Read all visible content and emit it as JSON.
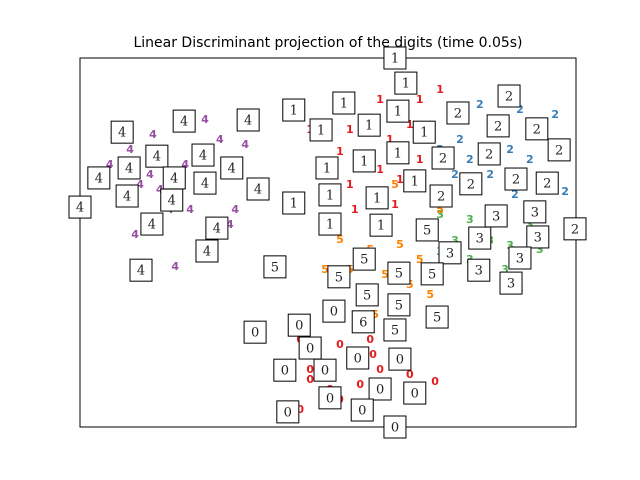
{
  "chart_data": {
    "type": "scatter",
    "title": "Linear Discriminant projection of the digits (time 0.05s)",
    "xlim": [
      0,
      100
    ],
    "ylim": [
      0,
      100
    ],
    "series": [
      {
        "name": "0",
        "color": "#e41a1c",
        "x": [
          50.4,
          44.4,
          52.4,
          58.5,
          62.9,
          46.4,
          54.4,
          60.5,
          66.5,
          50.4,
          56.5,
          44.4,
          52.4,
          46.4,
          71.6,
          59.1
        ],
        "values": [
          31.7,
          23.6,
          22.2,
          23.6,
          26.3,
          15.4,
          16.8,
          15.4,
          14.1,
          10.0,
          11.4,
          4.6,
          7.3,
          12.7,
          12.2,
          19.5
        ]
      },
      {
        "name": "1",
        "color": "#e41a1c",
        "x": [
          52.4,
          60.5,
          68.5,
          54.4,
          62.5,
          66.5,
          56.5,
          60.5,
          64.5,
          54.4,
          48.4,
          50.4,
          58.5,
          55.4,
          63.5,
          72.6,
          52.4,
          46.4,
          68.5,
          61.3
        ],
        "values": [
          88.6,
          88.6,
          88.6,
          80.5,
          77.8,
          81.8,
          72.4,
          69.6,
          66.9,
          65.6,
          68.3,
          61.5,
          62.9,
          58.8,
          60.2,
          91.3,
          74.5,
          80.5,
          72.4,
          53.4
        ]
      },
      {
        "name": "2",
        "color": "#377eb8",
        "x": [
          80.6,
          88.7,
          95.8,
          84.7,
          93.5,
          76.6,
          86.7,
          78.6,
          90.7,
          82.7,
          94.8,
          72.6,
          87.7,
          97.8,
          75.6
        ],
        "values": [
          87.3,
          85.9,
          84.6,
          81.0,
          79.1,
          77.8,
          75.1,
          72.4,
          72.4,
          68.3,
          66.9,
          75.1,
          62.9,
          63.7,
          68.3
        ]
      },
      {
        "name": "3",
        "color": "#4daf4a",
        "x": [
          72.6,
          78.6,
          84.7,
          90.7,
          75.6,
          82.7,
          86.7,
          78.6,
          85.7,
          92.7,
          72.6,
          88.7,
          80.6
        ],
        "values": [
          57.5,
          56.1,
          57.5,
          54.7,
          50.4,
          50.4,
          49.1,
          45.3,
          42.5,
          48.0,
          47.4,
          37.1,
          41.2
        ]
      },
      {
        "name": "4",
        "color": "#984ea3",
        "x": [
          14.7,
          10.1,
          6.0,
          14.1,
          12.1,
          16.1,
          8.1,
          21.2,
          26.2,
          30.2,
          18.1,
          11.1,
          24.2,
          22.2,
          15.1,
          28.2,
          33.3,
          25.2,
          19.2,
          31.3
        ],
        "values": [
          79.1,
          75.1,
          71.0,
          68.3,
          65.6,
          64.2,
          61.5,
          71.0,
          65.6,
          54.7,
          58.8,
          52.0,
          48.0,
          58.8,
          72.4,
          77.8,
          76.4,
          83.2,
          43.4,
          58.8
        ]
      },
      {
        "name": "5",
        "color": "#ff7f00",
        "x": [
          52.4,
          58.5,
          64.5,
          68.5,
          54.4,
          61.5,
          66.5,
          56.5,
          63.5,
          70.6,
          49.4,
          59.5,
          72.6,
          63.5
        ],
        "values": [
          50.7,
          48.0,
          49.3,
          45.3,
          42.5,
          41.2,
          38.5,
          37.1,
          34.4,
          35.8,
          42.5,
          30.4,
          58.8,
          65.6
        ]
      }
    ],
    "thumbnails": [
      {
        "label": "4",
        "x": 8.5,
        "y": 79.9
      },
      {
        "label": "4",
        "x": 21.0,
        "y": 82.9
      },
      {
        "label": "4",
        "x": 33.9,
        "y": 83.2
      },
      {
        "label": "4",
        "x": 15.5,
        "y": 73.4
      },
      {
        "label": "4",
        "x": 24.8,
        "y": 73.7
      },
      {
        "label": "4",
        "x": 9.9,
        "y": 70.2
      },
      {
        "label": "4",
        "x": 30.6,
        "y": 70.2
      },
      {
        "label": "4",
        "x": 3.8,
        "y": 67.5
      },
      {
        "label": "4",
        "x": 19.0,
        "y": 67.5
      },
      {
        "label": "4",
        "x": 25.2,
        "y": 66.1
      },
      {
        "label": "4",
        "x": 35.9,
        "y": 64.5
      },
      {
        "label": "4",
        "x": 9.5,
        "y": 62.6
      },
      {
        "label": "4",
        "x": 18.5,
        "y": 61.5
      },
      {
        "label": "4",
        "x": 0,
        "y": 59.6
      },
      {
        "label": "4",
        "x": 14.5,
        "y": 55.0
      },
      {
        "label": "4",
        "x": 27.6,
        "y": 53.9
      },
      {
        "label": "4",
        "x": 25.6,
        "y": 47.7
      },
      {
        "label": "4",
        "x": 12.3,
        "y": 42.5
      },
      {
        "label": "1",
        "x": 63.5,
        "y": 100
      },
      {
        "label": "1",
        "x": 65.7,
        "y": 93.2
      },
      {
        "label": "1",
        "x": 43.1,
        "y": 85.9
      },
      {
        "label": "1",
        "x": 53.2,
        "y": 87.8
      },
      {
        "label": "1",
        "x": 64.1,
        "y": 85.6
      },
      {
        "label": "1",
        "x": 58.3,
        "y": 81.8
      },
      {
        "label": "1",
        "x": 48.6,
        "y": 80.5
      },
      {
        "label": "1",
        "x": 69.4,
        "y": 79.9
      },
      {
        "label": "1",
        "x": 64.1,
        "y": 74.3
      },
      {
        "label": "1",
        "x": 57.3,
        "y": 72.1
      },
      {
        "label": "1",
        "x": 49.8,
        "y": 70.2
      },
      {
        "label": "1",
        "x": 67.5,
        "y": 66.7
      },
      {
        "label": "1",
        "x": 50.4,
        "y": 62.9
      },
      {
        "label": "1",
        "x": 59.9,
        "y": 62.1
      },
      {
        "label": "1",
        "x": 43.1,
        "y": 60.7
      },
      {
        "label": "1",
        "x": 50.4,
        "y": 55.0
      },
      {
        "label": "1",
        "x": 60.7,
        "y": 54.7
      },
      {
        "label": "2",
        "x": 76.2,
        "y": 85.1
      },
      {
        "label": "2",
        "x": 86.5,
        "y": 89.7
      },
      {
        "label": "2",
        "x": 84.3,
        "y": 81.6
      },
      {
        "label": "2",
        "x": 92.1,
        "y": 80.8
      },
      {
        "label": "2",
        "x": 82.5,
        "y": 74.0
      },
      {
        "label": "2",
        "x": 96.6,
        "y": 75.1
      },
      {
        "label": "2",
        "x": 73.2,
        "y": 72.9
      },
      {
        "label": "2",
        "x": 87.9,
        "y": 67.2
      },
      {
        "label": "2",
        "x": 78.8,
        "y": 65.9
      },
      {
        "label": "2",
        "x": 94.2,
        "y": 66.1
      },
      {
        "label": "2",
        "x": 72.8,
        "y": 62.6
      },
      {
        "label": "2",
        "x": 99.8,
        "y": 53.7
      },
      {
        "label": "3",
        "x": 83.9,
        "y": 57.2
      },
      {
        "label": "3",
        "x": 91.7,
        "y": 58.3
      },
      {
        "label": "3",
        "x": 80.6,
        "y": 51.2
      },
      {
        "label": "3",
        "x": 92.3,
        "y": 51.5
      },
      {
        "label": "3",
        "x": 74.6,
        "y": 47.2
      },
      {
        "label": "3",
        "x": 88.7,
        "y": 45.8
      },
      {
        "label": "3",
        "x": 80.4,
        "y": 42.5
      },
      {
        "label": "3",
        "x": 86.9,
        "y": 39.0
      },
      {
        "label": "5",
        "x": 70.0,
        "y": 53.4
      },
      {
        "label": "5",
        "x": 39.3,
        "y": 43.4
      },
      {
        "label": "5",
        "x": 57.3,
        "y": 45.5
      },
      {
        "label": "5",
        "x": 52.2,
        "y": 40.7
      },
      {
        "label": "5",
        "x": 64.3,
        "y": 41.7
      },
      {
        "label": "5",
        "x": 71.0,
        "y": 41.5
      },
      {
        "label": "5",
        "x": 57.9,
        "y": 35.8
      },
      {
        "label": "5",
        "x": 64.3,
        "y": 33.1
      },
      {
        "label": "5",
        "x": 72.0,
        "y": 29.8
      },
      {
        "label": "5",
        "x": 63.5,
        "y": 26.3
      },
      {
        "label": "6",
        "x": 57.1,
        "y": 28.5
      },
      {
        "label": "0",
        "x": 51.2,
        "y": 31.4
      },
      {
        "label": "0",
        "x": 35.3,
        "y": 25.7
      },
      {
        "label": "0",
        "x": 44.2,
        "y": 27.6
      },
      {
        "label": "0",
        "x": 46.4,
        "y": 21.4
      },
      {
        "label": "0",
        "x": 56.0,
        "y": 18.7
      },
      {
        "label": "0",
        "x": 64.5,
        "y": 18.4
      },
      {
        "label": "0",
        "x": 41.3,
        "y": 15.4
      },
      {
        "label": "0",
        "x": 49.4,
        "y": 15.4
      },
      {
        "label": "0",
        "x": 60.5,
        "y": 10.3
      },
      {
        "label": "0",
        "x": 67.5,
        "y": 9.2
      },
      {
        "label": "0",
        "x": 50.4,
        "y": 7.9
      },
      {
        "label": "0",
        "x": 41.9,
        "y": 4.1
      },
      {
        "label": "0",
        "x": 56.9,
        "y": 4.6
      },
      {
        "label": "0",
        "x": 63.5,
        "y": 0
      }
    ]
  }
}
